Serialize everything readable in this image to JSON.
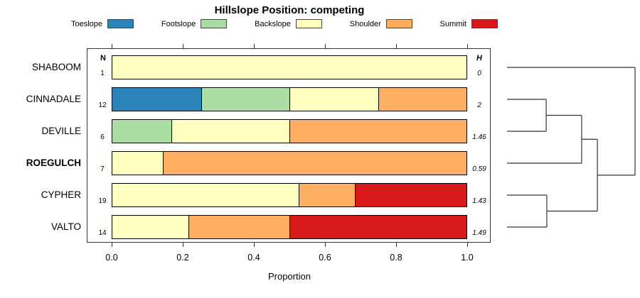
{
  "title": "Hillslope Position: competing",
  "legend": [
    {
      "label": "Toeslope",
      "color": "#2b83ba"
    },
    {
      "label": "Footslope",
      "color": "#abdda4"
    },
    {
      "label": "Backslope",
      "color": "#ffffbf"
    },
    {
      "label": "Shoulder",
      "color": "#fdae61"
    },
    {
      "label": "Summit",
      "color": "#d7191c"
    }
  ],
  "columns": {
    "n_header": "N",
    "h_header": "H"
  },
  "x_axis": {
    "label": "Proportion",
    "ticks": [
      "0.0",
      "0.2",
      "0.4",
      "0.6",
      "0.8",
      "1.0"
    ]
  },
  "chart_data": {
    "type": "bar",
    "orientation": "horizontal-stacked",
    "xlabel": "Proportion",
    "xlim": [
      0,
      1
    ],
    "categories": [
      "Toeslope",
      "Footslope",
      "Backslope",
      "Shoulder",
      "Summit"
    ],
    "rows": [
      {
        "name": "SHABOOM",
        "n": "1",
        "h": "0",
        "bold": false,
        "segments": [
          {
            "cat": "Backslope",
            "value": 1.0
          }
        ]
      },
      {
        "name": "CINNADALE",
        "n": "12",
        "h": "2",
        "bold": false,
        "segments": [
          {
            "cat": "Toeslope",
            "value": 0.25
          },
          {
            "cat": "Footslope",
            "value": 0.25
          },
          {
            "cat": "Backslope",
            "value": 0.25
          },
          {
            "cat": "Shoulder",
            "value": 0.25
          }
        ]
      },
      {
        "name": "DEVILLE",
        "n": "6",
        "h": "1.46",
        "bold": false,
        "segments": [
          {
            "cat": "Footslope",
            "value": 0.167
          },
          {
            "cat": "Backslope",
            "value": 0.333
          },
          {
            "cat": "Shoulder",
            "value": 0.5
          }
        ]
      },
      {
        "name": "ROEGULCH",
        "n": "7",
        "h": "0.59",
        "bold": true,
        "segments": [
          {
            "cat": "Backslope",
            "value": 0.143
          },
          {
            "cat": "Shoulder",
            "value": 0.857
          }
        ]
      },
      {
        "name": "CYPHER",
        "n": "19",
        "h": "1.43",
        "bold": false,
        "segments": [
          {
            "cat": "Backslope",
            "value": 0.526
          },
          {
            "cat": "Shoulder",
            "value": 0.158
          },
          {
            "cat": "Summit",
            "value": 0.316
          }
        ]
      },
      {
        "name": "VALTO",
        "n": "14",
        "h": "1.49",
        "bold": false,
        "segments": [
          {
            "cat": "Backslope",
            "value": 0.214
          },
          {
            "cat": "Shoulder",
            "value": 0.286
          },
          {
            "cat": "Summit",
            "value": 0.5
          }
        ]
      }
    ],
    "dendrogram": {
      "leaves": [
        "SHABOOM",
        "CINNADALE",
        "DEVILLE",
        "ROEGULCH",
        "CYPHER",
        "VALTO"
      ],
      "merges": [
        {
          "children": [
            "CINNADALE",
            "DEVILLE"
          ],
          "height": 0.306
        },
        {
          "children": [
            "CYPHER",
            "VALTO"
          ],
          "height": 0.311
        },
        {
          "children": [
            "#0",
            "ROEGULCH"
          ],
          "height": 0.583
        },
        {
          "children": [
            "#2",
            "#1"
          ],
          "height": 0.706
        },
        {
          "children": [
            "SHABOOM",
            "#3"
          ],
          "height": 1.0
        }
      ]
    }
  }
}
